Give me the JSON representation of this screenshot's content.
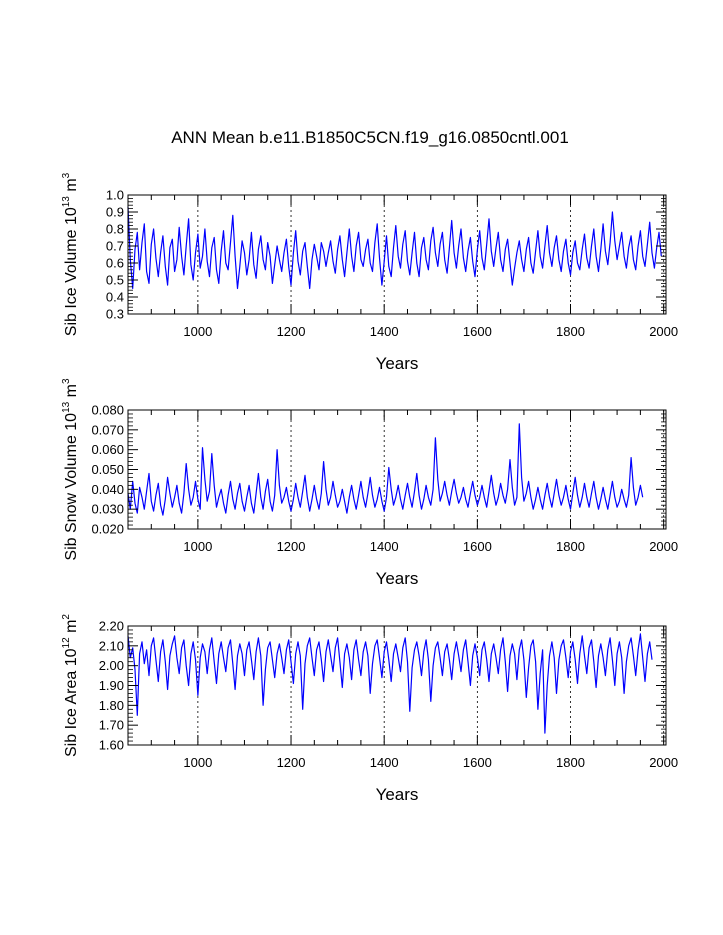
{
  "title": "ANN Mean b.e11.B1850C5CN.f19_g16.0850cntl.001",
  "colors": {
    "series": "#0000ff",
    "axis": "#000000",
    "grid": "#000000"
  },
  "chart_data": [
    {
      "type": "line",
      "title": "ANN Mean b.e11.B1850C5CN.f19_g16.0850cntl.001",
      "xlabel": "Years",
      "ylabel": {
        "text": "Sib Ice Volume 10",
        "exp": "13",
        "unit": "m",
        "unit_exp": "3"
      },
      "xlim": [
        850,
        2005
      ],
      "ylim": [
        0.3,
        1.0
      ],
      "x_ticks": [
        1000,
        1200,
        1400,
        1600,
        1800,
        2000
      ],
      "x_tick_labels": [
        "1000",
        "1200",
        "1400",
        "1600",
        "1800",
        "2000"
      ],
      "y_ticks": [
        0.3,
        0.4,
        0.5,
        0.6,
        0.7,
        0.8,
        0.9,
        1.0
      ],
      "y_tick_labels": [
        "0.3",
        "0.4",
        "0.5",
        "0.6",
        "0.7",
        "0.8",
        "0.9",
        "1.0"
      ],
      "grid": "vertical dashed at x ticks",
      "series": [
        {
          "x_start": 850,
          "x_step": 5,
          "values": [
            0.93,
            0.62,
            0.45,
            0.68,
            0.78,
            0.56,
            0.72,
            0.83,
            0.55,
            0.48,
            0.71,
            0.8,
            0.63,
            0.52,
            0.66,
            0.76,
            0.58,
            0.47,
            0.69,
            0.74,
            0.55,
            0.62,
            0.81,
            0.64,
            0.53,
            0.7,
            0.86,
            0.59,
            0.5,
            0.66,
            0.77,
            0.57,
            0.64,
            0.8,
            0.61,
            0.52,
            0.69,
            0.75,
            0.56,
            0.48,
            0.67,
            0.79,
            0.6,
            0.56,
            0.72,
            0.88,
            0.64,
            0.45,
            0.58,
            0.73,
            0.66,
            0.53,
            0.62,
            0.78,
            0.59,
            0.51,
            0.68,
            0.76,
            0.62,
            0.56,
            0.72,
            0.64,
            0.48,
            0.59,
            0.7,
            0.62,
            0.55,
            0.66,
            0.74,
            0.58,
            0.47,
            0.66,
            0.79,
            0.61,
            0.53,
            0.67,
            0.72,
            0.58,
            0.45,
            0.62,
            0.71,
            0.64,
            0.56,
            0.72,
            0.67,
            0.58,
            0.66,
            0.73,
            0.61,
            0.54,
            0.68,
            0.76,
            0.62,
            0.52,
            0.66,
            0.8,
            0.64,
            0.55,
            0.7,
            0.78,
            0.62,
            0.58,
            0.68,
            0.74,
            0.6,
            0.55,
            0.72,
            0.83,
            0.63,
            0.47,
            0.61,
            0.76,
            0.58,
            0.52,
            0.69,
            0.82,
            0.64,
            0.57,
            0.71,
            0.79,
            0.61,
            0.53,
            0.66,
            0.78,
            0.6,
            0.52,
            0.69,
            0.75,
            0.62,
            0.56,
            0.73,
            0.81,
            0.66,
            0.58,
            0.71,
            0.78,
            0.62,
            0.54,
            0.69,
            0.85,
            0.66,
            0.57,
            0.7,
            0.8,
            0.63,
            0.55,
            0.67,
            0.75,
            0.61,
            0.52,
            0.68,
            0.79,
            0.63,
            0.56,
            0.71,
            0.86,
            0.67,
            0.58,
            0.69,
            0.78,
            0.62,
            0.55,
            0.68,
            0.74,
            0.6,
            0.47,
            0.57,
            0.66,
            0.73,
            0.62,
            0.55,
            0.68,
            0.75,
            0.6,
            0.54,
            0.67,
            0.79,
            0.64,
            0.57,
            0.7,
            0.82,
            0.66,
            0.58,
            0.69,
            0.76,
            0.62,
            0.55,
            0.67,
            0.74,
            0.6,
            0.53,
            0.66,
            0.73,
            0.6,
            0.56,
            0.68,
            0.77,
            0.63,
            0.57,
            0.7,
            0.8,
            0.64,
            0.55,
            0.68,
            0.83,
            0.67,
            0.59,
            0.72,
            0.9,
            0.73,
            0.62,
            0.7,
            0.78,
            0.64,
            0.57,
            0.69,
            0.76,
            0.62,
            0.56,
            0.7,
            0.79,
            0.64,
            0.58,
            0.71,
            0.84,
            0.66,
            0.57,
            0.69,
            0.78,
            0.64
          ]
        }
      ]
    },
    {
      "type": "line",
      "xlabel": "Years",
      "ylabel": {
        "text": "Sib Snow Volume 10",
        "exp": "13",
        "unit": "m",
        "unit_exp": "3"
      },
      "xlim": [
        850,
        2005
      ],
      "ylim": [
        0.02,
        0.08
      ],
      "x_ticks": [
        1000,
        1200,
        1400,
        1600,
        1800,
        2000
      ],
      "x_tick_labels": [
        "1000",
        "1200",
        "1400",
        "1600",
        "1800",
        "2000"
      ],
      "y_ticks": [
        0.02,
        0.03,
        0.04,
        0.05,
        0.06,
        0.07,
        0.08
      ],
      "y_tick_labels": [
        "0.020",
        "0.030",
        "0.040",
        "0.050",
        "0.060",
        "0.070",
        "0.080"
      ],
      "grid": "vertical dashed at x ticks",
      "series": [
        {
          "x_start": 850,
          "x_step": 5,
          "values": [
            0.038,
            0.03,
            0.044,
            0.033,
            0.028,
            0.041,
            0.036,
            0.03,
            0.039,
            0.048,
            0.034,
            0.029,
            0.037,
            0.043,
            0.032,
            0.027,
            0.035,
            0.046,
            0.038,
            0.031,
            0.036,
            0.042,
            0.033,
            0.028,
            0.038,
            0.053,
            0.04,
            0.032,
            0.036,
            0.044,
            0.035,
            0.03,
            0.061,
            0.045,
            0.034,
            0.039,
            0.058,
            0.042,
            0.031,
            0.036,
            0.04,
            0.033,
            0.028,
            0.037,
            0.044,
            0.035,
            0.03,
            0.038,
            0.043,
            0.034,
            0.029,
            0.036,
            0.042,
            0.033,
            0.028,
            0.038,
            0.048,
            0.036,
            0.03,
            0.039,
            0.045,
            0.034,
            0.029,
            0.037,
            0.06,
            0.042,
            0.033,
            0.036,
            0.041,
            0.034,
            0.029,
            0.035,
            0.043,
            0.036,
            0.031,
            0.039,
            0.047,
            0.036,
            0.029,
            0.035,
            0.042,
            0.035,
            0.03,
            0.038,
            0.054,
            0.04,
            0.032,
            0.036,
            0.044,
            0.037,
            0.031,
            0.034,
            0.04,
            0.034,
            0.028,
            0.036,
            0.042,
            0.035,
            0.03,
            0.037,
            0.044,
            0.036,
            0.031,
            0.038,
            0.046,
            0.037,
            0.031,
            0.035,
            0.041,
            0.034,
            0.029,
            0.036,
            0.051,
            0.04,
            0.032,
            0.036,
            0.042,
            0.035,
            0.03,
            0.037,
            0.043,
            0.036,
            0.031,
            0.039,
            0.048,
            0.037,
            0.03,
            0.035,
            0.042,
            0.036,
            0.032,
            0.04,
            0.066,
            0.045,
            0.034,
            0.038,
            0.044,
            0.037,
            0.032,
            0.039,
            0.045,
            0.038,
            0.033,
            0.036,
            0.041,
            0.035,
            0.031,
            0.038,
            0.044,
            0.037,
            0.032,
            0.036,
            0.042,
            0.036,
            0.031,
            0.039,
            0.047,
            0.038,
            0.032,
            0.036,
            0.043,
            0.037,
            0.033,
            0.04,
            0.055,
            0.041,
            0.032,
            0.036,
            0.073,
            0.046,
            0.034,
            0.038,
            0.044,
            0.036,
            0.03,
            0.035,
            0.041,
            0.035,
            0.03,
            0.037,
            0.043,
            0.036,
            0.031,
            0.038,
            0.045,
            0.037,
            0.032,
            0.036,
            0.042,
            0.035,
            0.03,
            0.038,
            0.046,
            0.037,
            0.031,
            0.036,
            0.043,
            0.036,
            0.031,
            0.038,
            0.044,
            0.036,
            0.03,
            0.035,
            0.041,
            0.035,
            0.03,
            0.037,
            0.044,
            0.036,
            0.031,
            0.034,
            0.04,
            0.035,
            0.031,
            0.037,
            0.056,
            0.041,
            0.032,
            0.036,
            0.042,
            0.036
          ]
        }
      ]
    },
    {
      "type": "line",
      "xlabel": "Years",
      "ylabel": {
        "text": "Sib Ice Area 10",
        "exp": "12",
        "unit": "m",
        "unit_exp": "2"
      },
      "xlim": [
        850,
        2005
      ],
      "ylim": [
        1.6,
        2.2
      ],
      "x_ticks": [
        1000,
        1200,
        1400,
        1600,
        1800,
        2000
      ],
      "x_tick_labels": [
        "1000",
        "1200",
        "1400",
        "1600",
        "1800",
        "2000"
      ],
      "y_ticks": [
        1.6,
        1.7,
        1.8,
        1.9,
        2.0,
        2.1,
        2.2
      ],
      "y_tick_labels": [
        "1.60",
        "1.70",
        "1.80",
        "1.90",
        "2.00",
        "2.10",
        "2.20"
      ],
      "grid": "vertical dashed at x ticks",
      "series": [
        {
          "x_start": 850,
          "x_step": 5,
          "values": [
            2.15,
            2.04,
            2.09,
            1.98,
            1.75,
            2.06,
            2.12,
            2.01,
            2.08,
            1.95,
            2.1,
            2.14,
            2.03,
            1.92,
            2.07,
            2.13,
            2.02,
            1.88,
            2.05,
            2.11,
            2.15,
            2.04,
            1.96,
            2.09,
            2.13,
            2.0,
            1.9,
            2.06,
            2.12,
            2.03,
            1.85,
            2.04,
            2.11,
            2.07,
            1.96,
            2.08,
            2.14,
            2.02,
            1.91,
            2.06,
            2.12,
            2.04,
            1.97,
            2.09,
            2.13,
            2.01,
            1.88,
            2.05,
            2.11,
            2.06,
            1.95,
            2.08,
            2.12,
            2.03,
            1.93,
            2.07,
            2.14,
            2.05,
            1.8,
            1.98,
            2.09,
            2.12,
            2.03,
            1.94,
            2.06,
            2.11,
            2.04,
            1.96,
            2.08,
            2.13,
            2.02,
            1.91,
            2.06,
            2.12,
            2.05,
            1.78,
            2.01,
            2.1,
            2.14,
            2.04,
            1.95,
            2.08,
            2.12,
            2.03,
            1.92,
            2.07,
            2.13,
            2.05,
            1.97,
            2.09,
            2.14,
            2.02,
            1.89,
            2.06,
            2.11,
            2.04,
            1.93,
            2.08,
            2.13,
            2.03,
            1.95,
            2.07,
            2.12,
            2.05,
            1.86,
            2.01,
            2.1,
            2.13,
            2.04,
            1.94,
            2.07,
            2.12,
            2.03,
            1.92,
            2.06,
            2.11,
            2.04,
            1.97,
            2.09,
            2.14,
            2.02,
            1.77,
            1.99,
            2.08,
            2.12,
            2.05,
            1.95,
            2.07,
            2.13,
            2.03,
            1.82,
            2.0,
            2.09,
            2.12,
            2.04,
            1.95,
            2.07,
            2.11,
            2.03,
            1.93,
            2.06,
            2.12,
            2.05,
            1.97,
            2.08,
            2.13,
            2.02,
            1.9,
            2.05,
            2.11,
            2.04,
            1.95,
            2.08,
            2.12,
            2.03,
            1.92,
            2.06,
            2.11,
            2.04,
            1.96,
            2.08,
            2.14,
            2.02,
            1.87,
            2.05,
            2.11,
            2.06,
            1.93,
            2.08,
            2.13,
            2.03,
            1.84,
            1.99,
            2.1,
            2.13,
            2.02,
            1.78,
            1.96,
            2.08,
            1.66,
            1.9,
            2.05,
            2.12,
            2.04,
            1.86,
            2.03,
            2.1,
            2.13,
            2.04,
            1.94,
            2.07,
            2.12,
            2.03,
            1.91,
            2.06,
            2.15,
            2.05,
            1.96,
            2.09,
            2.13,
            2.02,
            1.89,
            2.05,
            2.11,
            2.04,
            1.95,
            2.08,
            2.14,
            2.03,
            1.9,
            2.06,
            2.12,
            2.04,
            1.86,
            2.02,
            2.1,
            2.14,
            2.05,
            1.95,
            2.08,
            2.16,
            2.04,
            1.92,
            2.06,
            2.12,
            2.03
          ]
        }
      ]
    }
  ]
}
